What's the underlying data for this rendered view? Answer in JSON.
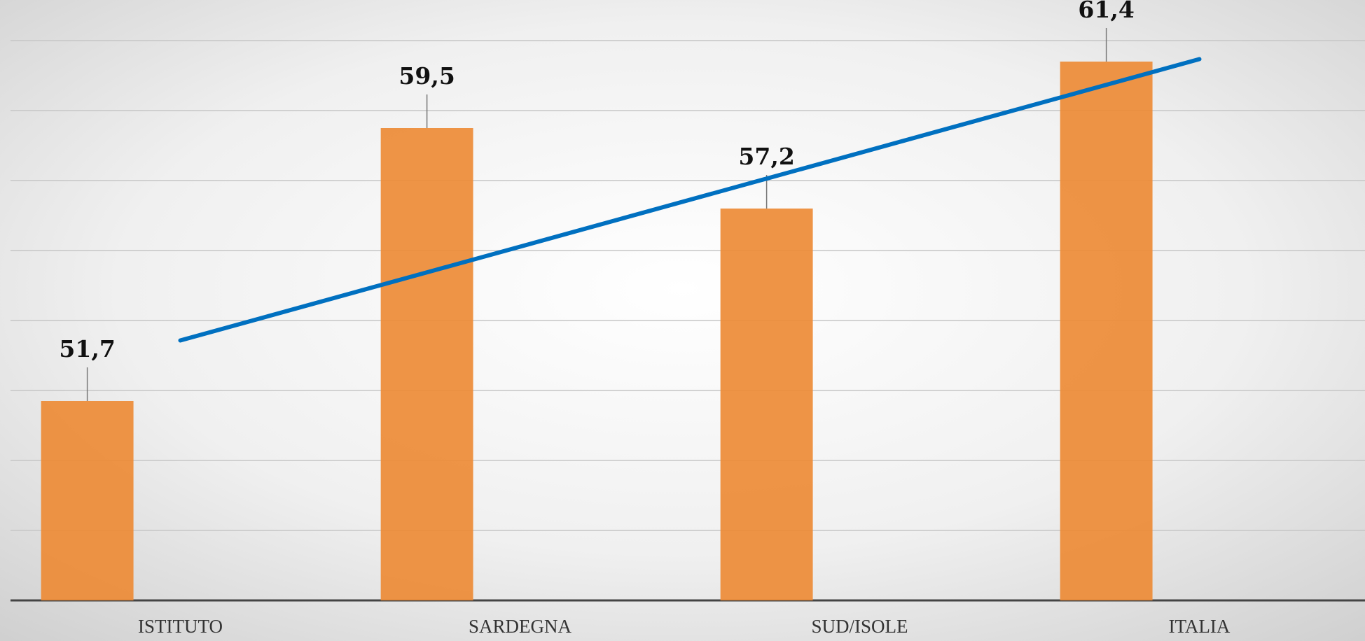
{
  "chart_data": {
    "type": "bar",
    "categories": [
      "ISTITUTO",
      "SARDEGNA",
      "SUD/ISOLE",
      "ITALIA"
    ],
    "values": [
      51.7,
      59.5,
      57.2,
      61.4
    ],
    "value_labels": [
      "51,7",
      "59,5",
      "57,2",
      "61,4"
    ],
    "color": "#ed8b36",
    "ylim": [
      46,
      62
    ],
    "yticks": [
      46,
      48,
      50,
      52,
      54,
      56,
      58,
      60,
      62
    ],
    "grid": true,
    "trendline": {
      "type": "linear",
      "color": "#0070c0"
    }
  }
}
